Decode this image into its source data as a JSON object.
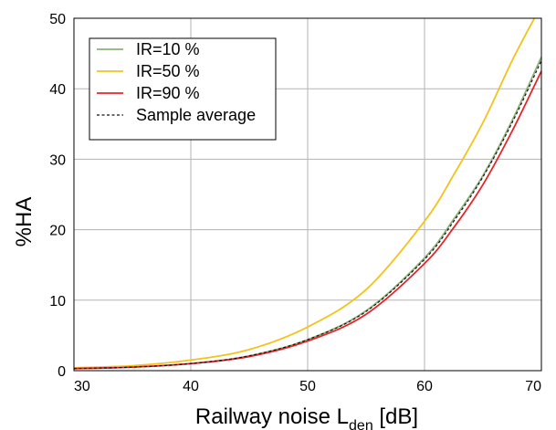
{
  "chart_data": {
    "type": "line",
    "title": "",
    "xlabel": "Railway noise L",
    "xlabel_sub": "den",
    "xlabel_unit": " [dB]",
    "ylabel": "%HA",
    "xlim": [
      30,
      70
    ],
    "ylim": [
      0,
      50
    ],
    "xticks": [
      30,
      40,
      50,
      60,
      70
    ],
    "yticks": [
      0,
      10,
      20,
      30,
      40,
      50
    ],
    "grid": true,
    "legend_position": "top-left",
    "series": [
      {
        "name": "IR=10 %",
        "color": "#8cb27a",
        "dash": "solid",
        "x": [
          30,
          35,
          40,
          45,
          50,
          55,
          60,
          62.5,
          65,
          67.5,
          70
        ],
        "y": [
          0.3,
          0.5,
          1.0,
          2.1,
          4.4,
          8.5,
          16.0,
          21.5,
          27.7,
          35.5,
          44.5
        ]
      },
      {
        "name": "IR=50 %",
        "color": "#f3c21b",
        "dash": "solid",
        "x": [
          30,
          35,
          40,
          45,
          50,
          55,
          60,
          62.5,
          65,
          67.5,
          69.4
        ],
        "y": [
          0.4,
          0.7,
          1.5,
          3.0,
          6.2,
          11.5,
          21.2,
          27.8,
          35.2,
          44.0,
          50.0
        ]
      },
      {
        "name": "IR=90 %",
        "color": "#e8242a",
        "dash": "solid",
        "x": [
          30,
          35,
          40,
          45,
          50,
          55,
          60,
          62.5,
          65,
          67.5,
          70
        ],
        "y": [
          0.3,
          0.5,
          1.0,
          2.0,
          4.2,
          8.0,
          15.2,
          20.3,
          26.4,
          34.0,
          42.5
        ]
      },
      {
        "name": "Sample average",
        "color": "#111111",
        "dash": "dashed",
        "x": [
          30,
          35,
          40,
          45,
          50,
          55,
          60,
          62.5,
          65,
          67.5,
          70
        ],
        "y": [
          0.3,
          0.5,
          1.0,
          2.1,
          4.4,
          8.4,
          15.8,
          21.2,
          27.5,
          35.2,
          44.0
        ]
      }
    ]
  }
}
